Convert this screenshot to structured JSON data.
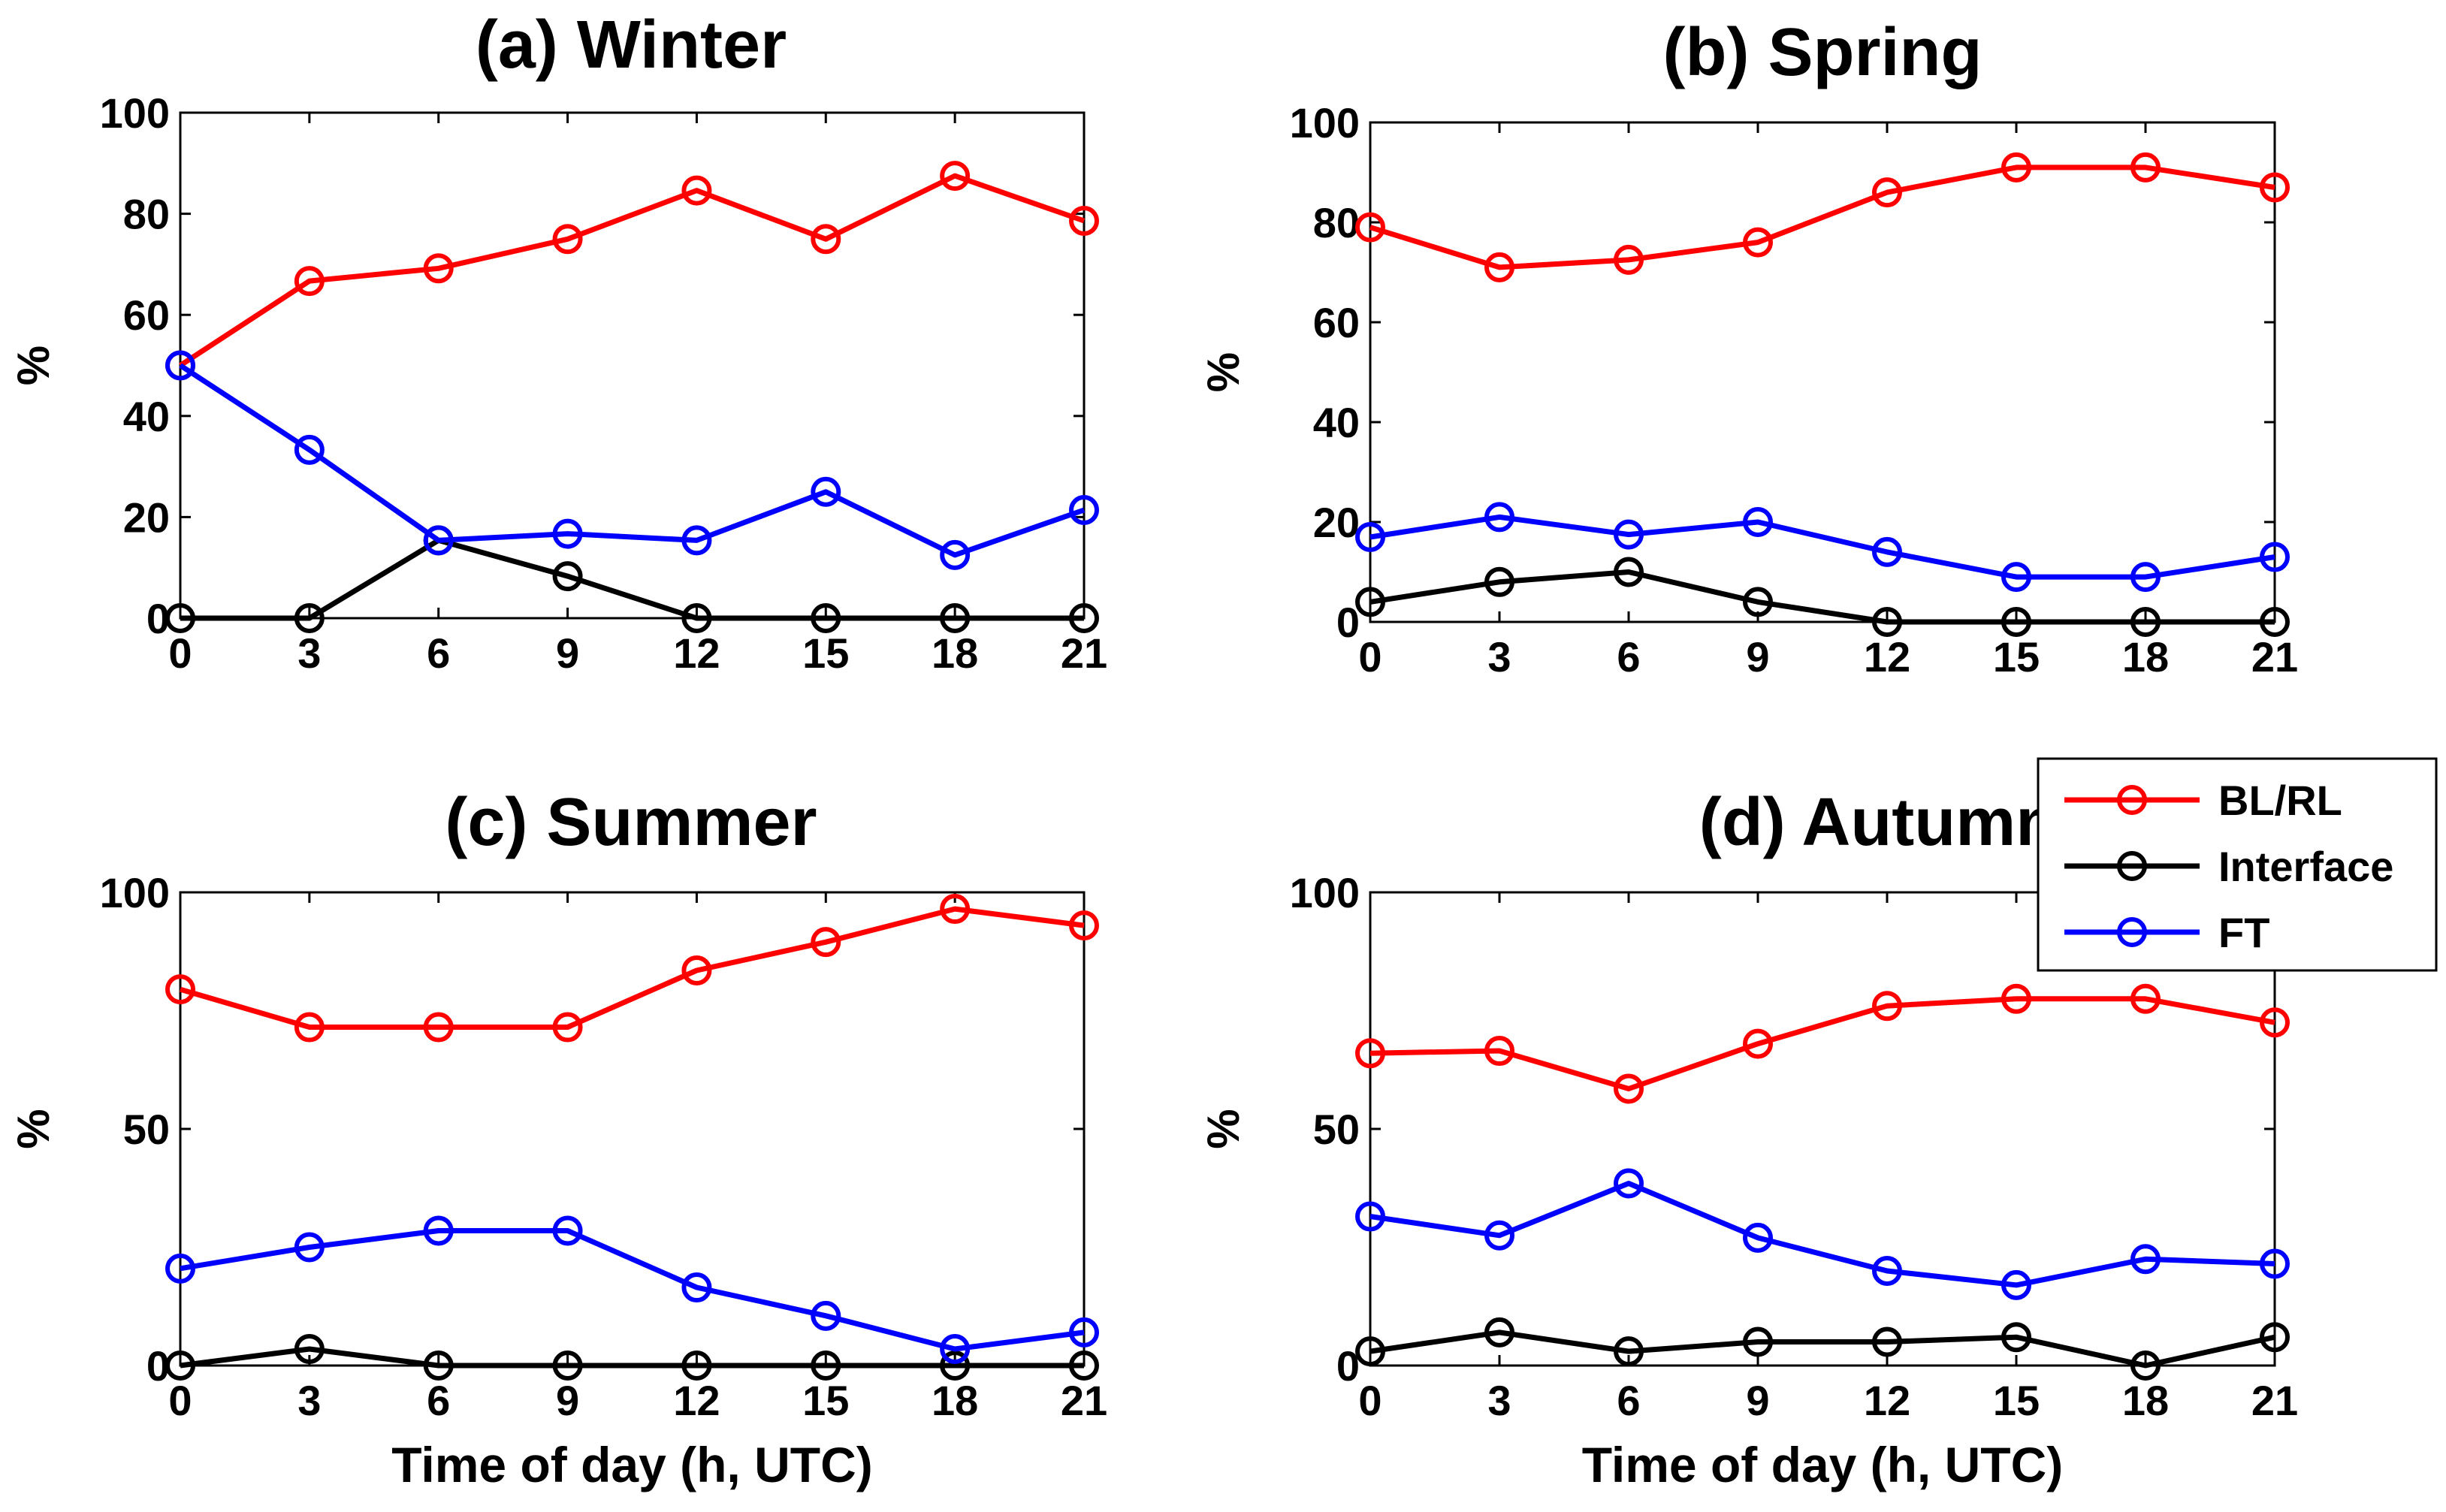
{
  "figure": {
    "legend": [
      {
        "name": "BL/RL",
        "color": "#ff0000"
      },
      {
        "name": "Interface",
        "color": "#000000"
      },
      {
        "name": "FT",
        "color": "#0000ff"
      }
    ]
  },
  "chart_data": [
    {
      "type": "line",
      "title": "(a) Winter",
      "xlabel": "",
      "ylabel": "%",
      "x": [
        0,
        3,
        6,
        9,
        12,
        15,
        18,
        21
      ],
      "xticks": [
        0,
        3,
        6,
        9,
        12,
        15,
        18,
        21
      ],
      "xtick_labels": [
        "0",
        "3",
        "6",
        "9",
        "12",
        "15",
        "18",
        "21"
      ],
      "xlim": [
        0,
        21
      ],
      "ylim": [
        0,
        100
      ],
      "yticks": [
        0,
        20,
        40,
        60,
        80,
        100
      ],
      "ytick_labels": [
        "0",
        "20",
        "40",
        "60",
        "80",
        "100"
      ],
      "series": [
        {
          "name": "BL/RL",
          "color": "#ff0000",
          "values": [
            50,
            66.7,
            69.2,
            75,
            84.6,
            75,
            87.5,
            78.6
          ]
        },
        {
          "name": "Interface",
          "color": "#000000",
          "values": [
            0,
            0,
            15.4,
            8.3,
            0,
            0,
            0,
            0
          ]
        },
        {
          "name": "FT",
          "color": "#0000ff",
          "values": [
            50,
            33.3,
            15.4,
            16.7,
            15.4,
            25,
            12.5,
            21.4
          ]
        }
      ]
    },
    {
      "type": "line",
      "title": "(b) Spring",
      "xlabel": "",
      "ylabel": "%",
      "x": [
        0,
        3,
        6,
        9,
        12,
        15,
        18,
        21
      ],
      "xticks": [
        0,
        3,
        6,
        9,
        12,
        15,
        18,
        21
      ],
      "xtick_labels": [
        "0",
        "3",
        "6",
        "9",
        "12",
        "15",
        "18",
        "21"
      ],
      "xlim": [
        0,
        21
      ],
      "ylim": [
        0,
        100
      ],
      "yticks": [
        0,
        20,
        40,
        60,
        80,
        100
      ],
      "ytick_labels": [
        "0",
        "20",
        "40",
        "60",
        "80",
        "100"
      ],
      "series": [
        {
          "name": "BL/RL",
          "color": "#ff0000",
          "values": [
            79,
            71,
            72.5,
            76,
            86,
            91,
            91,
            87
          ]
        },
        {
          "name": "Interface",
          "color": "#000000",
          "values": [
            4,
            8,
            10,
            4,
            0,
            0,
            0,
            0
          ]
        },
        {
          "name": "FT",
          "color": "#0000ff",
          "values": [
            17,
            21,
            17.5,
            20,
            14,
            9,
            9,
            13
          ]
        }
      ]
    },
    {
      "type": "line",
      "title": "(c) Summer",
      "xlabel": "Time of day (h, UTC)",
      "ylabel": "%",
      "x": [
        0,
        3,
        6,
        9,
        12,
        15,
        18,
        21
      ],
      "xticks": [
        0,
        3,
        6,
        9,
        12,
        15,
        18,
        21
      ],
      "xtick_labels": [
        "0",
        "3",
        "6",
        "9",
        "12",
        "15",
        "18",
        "21"
      ],
      "xlim": [
        0,
        21
      ],
      "ylim": [
        0,
        100
      ],
      "yticks": [
        0,
        50,
        100
      ],
      "ytick_labels": [
        "0",
        "50",
        "100"
      ],
      "series": [
        {
          "name": "BL/RL",
          "color": "#ff0000",
          "values": [
            79.5,
            71.5,
            71.5,
            71.5,
            83.5,
            89.5,
            96.5,
            93
          ]
        },
        {
          "name": "Interface",
          "color": "#000000",
          "values": [
            0,
            3.5,
            0,
            0,
            0,
            0,
            0,
            0
          ]
        },
        {
          "name": "FT",
          "color": "#0000ff",
          "values": [
            20.5,
            25,
            28.5,
            28.5,
            16.5,
            10.5,
            3.5,
            7
          ]
        }
      ]
    },
    {
      "type": "line",
      "title": "(d) Autumn",
      "xlabel": "Time of day (h, UTC)",
      "ylabel": "%",
      "x": [
        0,
        3,
        6,
        9,
        12,
        15,
        18,
        21
      ],
      "xticks": [
        0,
        3,
        6,
        9,
        12,
        15,
        18,
        21
      ],
      "xtick_labels": [
        "0",
        "3",
        "6",
        "9",
        "12",
        "15",
        "18",
        "21"
      ],
      "xlim": [
        0,
        21
      ],
      "ylim": [
        0,
        100
      ],
      "yticks": [
        0,
        50,
        100
      ],
      "ytick_labels": [
        "0",
        "50",
        "100"
      ],
      "series": [
        {
          "name": "BL/RL",
          "color": "#ff0000",
          "values": [
            66,
            66.5,
            58.5,
            68,
            76,
            77.5,
            77.5,
            72.5
          ]
        },
        {
          "name": "Interface",
          "color": "#000000",
          "values": [
            3,
            7,
            3,
            5,
            5,
            6,
            0,
            6
          ]
        },
        {
          "name": "FT",
          "color": "#0000ff",
          "values": [
            31.5,
            27.5,
            38.5,
            27,
            20,
            17,
            22.5,
            21.5
          ]
        }
      ]
    }
  ]
}
